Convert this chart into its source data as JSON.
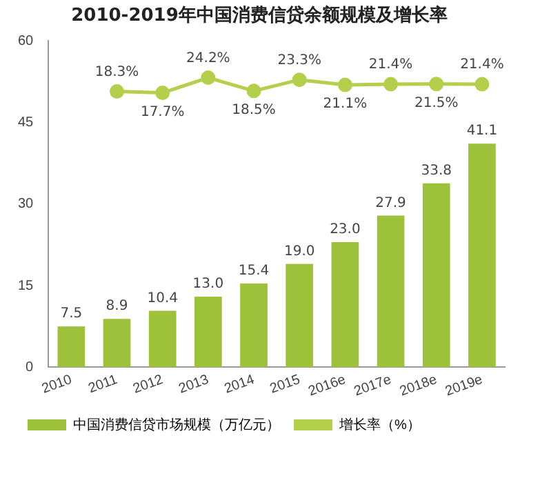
{
  "chart_data": {
    "type": "bar",
    "title": "2010-2019年中国消费信贷余额规模及增长率",
    "categories": [
      "2010",
      "2011",
      "2012",
      "2013",
      "2014",
      "2015",
      "2016e",
      "2017e",
      "2018e",
      "2019e"
    ],
    "series": [
      {
        "name": "中国消费信贷市场规模（万亿元）",
        "color": "#9dc13a",
        "values": [
          7.5,
          8.9,
          10.4,
          13.0,
          15.4,
          19.0,
          23.0,
          27.9,
          33.8,
          41.1
        ],
        "value_labels": [
          "7.5",
          "8.9",
          "10.4",
          "13.0",
          "15.4",
          "19.0",
          "23.0",
          "27.9",
          "33.8",
          "41.1"
        ]
      },
      {
        "name": "增长率（%）",
        "type": "line",
        "axis": "y2",
        "color": "#b3cf4c",
        "values": [
          null,
          18.3,
          17.7,
          24.2,
          18.5,
          23.3,
          21.1,
          21.4,
          21.5,
          21.4
        ],
        "value_labels": [
          null,
          "18.3%",
          "17.7%",
          "24.2%",
          "18.5%",
          "23.3%",
          "21.1%",
          "21.4%",
          "21.5%",
          "21.4%"
        ]
      }
    ],
    "ylim": [
      0,
      60
    ],
    "yticks": [
      0,
      15,
      30,
      45,
      60
    ],
    "y2lim": [
      -100,
      40
    ],
    "tick_labels": "xy",
    "grid": false,
    "legend": "bottom",
    "marker": "circle"
  }
}
